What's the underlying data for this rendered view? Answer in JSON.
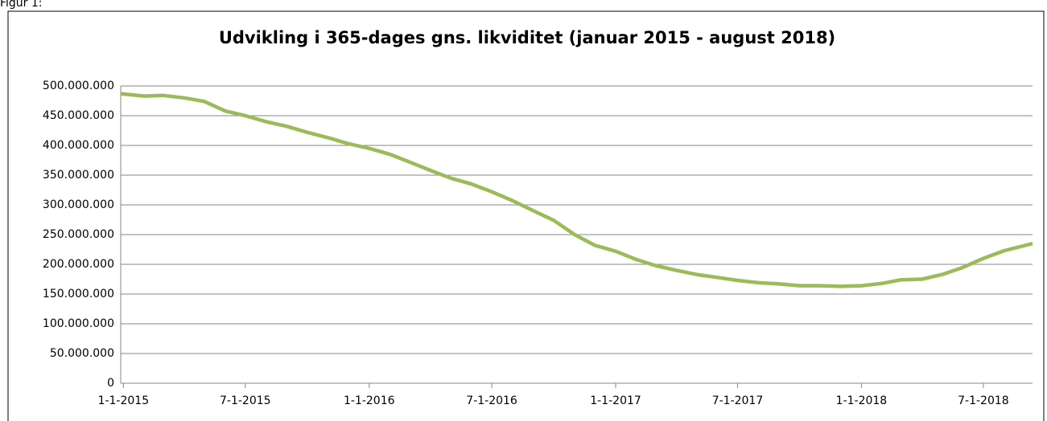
{
  "chart_data": {
    "type": "line",
    "caption": "Figur 1:",
    "title": "Udvikling i 365-dages gns. likviditet (januar 2015 - august 2018)",
    "x": [
      "2014-12-28",
      "2015-02-01",
      "2015-03-01",
      "2015-04-01",
      "2015-05-01",
      "2015-06-01",
      "2015-07-01",
      "2015-08-01",
      "2015-09-01",
      "2015-10-01",
      "2015-11-01",
      "2015-12-01",
      "2016-01-01",
      "2016-02-01",
      "2016-03-01",
      "2016-04-01",
      "2016-05-01",
      "2016-06-01",
      "2016-07-01",
      "2016-08-01",
      "2016-09-01",
      "2016-10-01",
      "2016-11-01",
      "2016-12-01",
      "2017-01-01",
      "2017-02-01",
      "2017-03-01",
      "2017-04-01",
      "2017-05-01",
      "2017-06-01",
      "2017-07-01",
      "2017-08-01",
      "2017-09-01",
      "2017-10-01",
      "2017-11-01",
      "2017-12-01",
      "2018-01-01",
      "2018-02-01",
      "2018-03-01",
      "2018-04-01",
      "2018-05-01",
      "2018-06-01",
      "2018-07-01",
      "2018-08-01",
      "2018-09-12"
    ],
    "series": [
      {
        "color": "#9bbb59",
        "values": [
          487000000,
          483000000,
          484000000,
          480000000,
          474000000,
          458000000,
          450000000,
          440000000,
          432000000,
          422000000,
          413000000,
          403000000,
          395000000,
          385000000,
          372000000,
          358000000,
          345000000,
          335000000,
          322000000,
          307000000,
          290000000,
          274000000,
          250000000,
          232000000,
          222000000,
          208000000,
          198000000,
          190000000,
          183000000,
          178000000,
          173000000,
          169000000,
          167000000,
          164000000,
          164000000,
          163000000,
          164000000,
          168000000,
          174000000,
          175000000,
          183000000,
          195000000,
          210000000,
          223000000,
          235000000
        ]
      }
    ],
    "xlim": [
      "2014-12-28",
      "2018-09-12"
    ],
    "xticks": [
      {
        "value": "2015-01-01",
        "label": "1-1-2015"
      },
      {
        "value": "2015-07-01",
        "label": "7-1-2015"
      },
      {
        "value": "2016-01-01",
        "label": "1-1-2016"
      },
      {
        "value": "2016-07-01",
        "label": "7-1-2016"
      },
      {
        "value": "2017-01-01",
        "label": "1-1-2017"
      },
      {
        "value": "2017-07-01",
        "label": "7-1-2017"
      },
      {
        "value": "2018-01-01",
        "label": "1-1-2018"
      },
      {
        "value": "2018-07-01",
        "label": "7-1-2018"
      }
    ],
    "ylim": [
      0,
      500000000
    ],
    "yticks": [
      0,
      {
        "value": 50000000,
        "label": "50.000.000"
      },
      {
        "value": 100000000,
        "label": "100.000.000"
      },
      {
        "value": 150000000,
        "label": "150.000.000"
      },
      {
        "value": 200000000,
        "label": "200.000.000"
      },
      {
        "value": 250000000,
        "label": "250.000.000"
      },
      {
        "value": 300000000,
        "label": "300.000.000"
      },
      {
        "value": 350000000,
        "label": "350.000.000"
      },
      {
        "value": 400000000,
        "label": "400.000.000"
      },
      {
        "value": 450000000,
        "label": "450.000.000"
      },
      {
        "value": 500000000,
        "label": "500.000.000"
      }
    ],
    "grid": true
  }
}
